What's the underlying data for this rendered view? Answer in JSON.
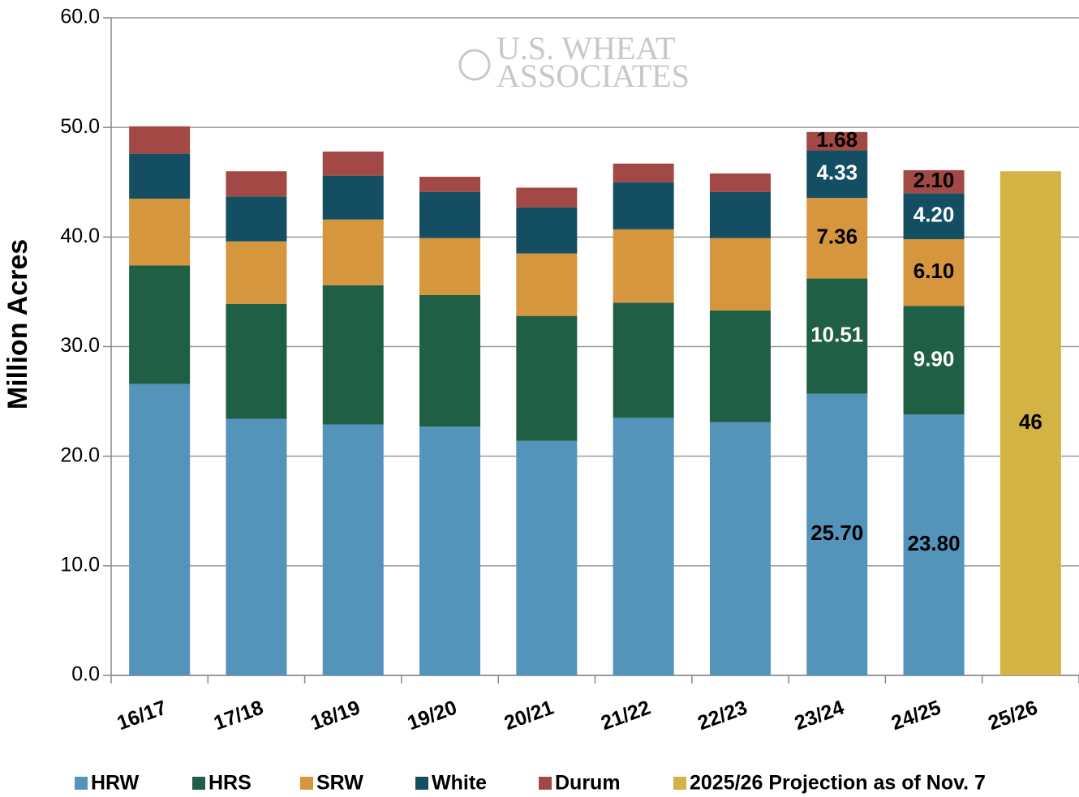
{
  "chart_data": {
    "type": "stacked_bar",
    "y_label": "Million Acres",
    "watermark": [
      "U.S. WHEAT",
      "ASSOCIATES"
    ],
    "categories": [
      "16/17",
      "17/18",
      "18/19",
      "19/20",
      "20/21",
      "21/22",
      "22/23",
      "23/24",
      "24/25",
      "25/26"
    ],
    "series": [
      {
        "name": "HRW",
        "color": "#5494bb",
        "label_color": "#000000",
        "values": [
          26.6,
          23.4,
          22.9,
          22.7,
          21.4,
          23.5,
          23.1,
          25.7,
          23.8,
          null
        ],
        "value_labels": [
          null,
          null,
          null,
          null,
          null,
          null,
          null,
          "25.70",
          "23.80",
          null
        ]
      },
      {
        "name": "HRS",
        "color": "#1f5f45",
        "label_color": "#ffffff",
        "values": [
          10.8,
          10.5,
          12.7,
          12.0,
          11.4,
          10.5,
          10.2,
          10.51,
          9.9,
          null
        ],
        "value_labels": [
          null,
          null,
          null,
          null,
          null,
          null,
          null,
          "10.51",
          "9.90",
          null
        ]
      },
      {
        "name": "SRW",
        "color": "#d5963e",
        "label_color": "#000000",
        "values": [
          6.1,
          5.7,
          6.0,
          5.2,
          5.7,
          6.7,
          6.6,
          7.36,
          6.1,
          null
        ],
        "value_labels": [
          null,
          null,
          null,
          null,
          null,
          null,
          null,
          "7.36",
          "6.10",
          null
        ]
      },
      {
        "name": "White",
        "color": "#134e63",
        "label_color": "#ffffff",
        "values": [
          4.1,
          4.1,
          4.0,
          4.2,
          4.2,
          4.3,
          4.2,
          4.33,
          4.2,
          null
        ],
        "value_labels": [
          null,
          null,
          null,
          null,
          null,
          null,
          null,
          "4.33",
          "4.20",
          null
        ]
      },
      {
        "name": "Durum",
        "color": "#a24845",
        "label_color": "#000000",
        "values": [
          2.5,
          2.3,
          2.2,
          1.4,
          1.8,
          1.7,
          1.7,
          1.68,
          2.1,
          null
        ],
        "value_labels": [
          null,
          null,
          null,
          null,
          null,
          null,
          null,
          "1.68",
          "2.10",
          null
        ]
      },
      {
        "name": "2025/26 Projection as of Nov. 7",
        "color": "#d4b345",
        "label_color": "#000000",
        "values": [
          null,
          null,
          null,
          null,
          null,
          null,
          null,
          null,
          null,
          46
        ],
        "value_labels": [
          null,
          null,
          null,
          null,
          null,
          null,
          null,
          null,
          null,
          "46"
        ]
      }
    ],
    "ylim": [
      0,
      60
    ],
    "yticks": [
      {
        "value": 0,
        "label": "0.0"
      },
      {
        "value": 10,
        "label": "10.0"
      },
      {
        "value": 20,
        "label": "20.0"
      },
      {
        "value": 30,
        "label": "30.0"
      },
      {
        "value": 40,
        "label": "40.0"
      },
      {
        "value": 50,
        "label": "50.0"
      },
      {
        "value": 60,
        "label": "60.0"
      }
    ],
    "grid": true,
    "legend": "bottom"
  }
}
